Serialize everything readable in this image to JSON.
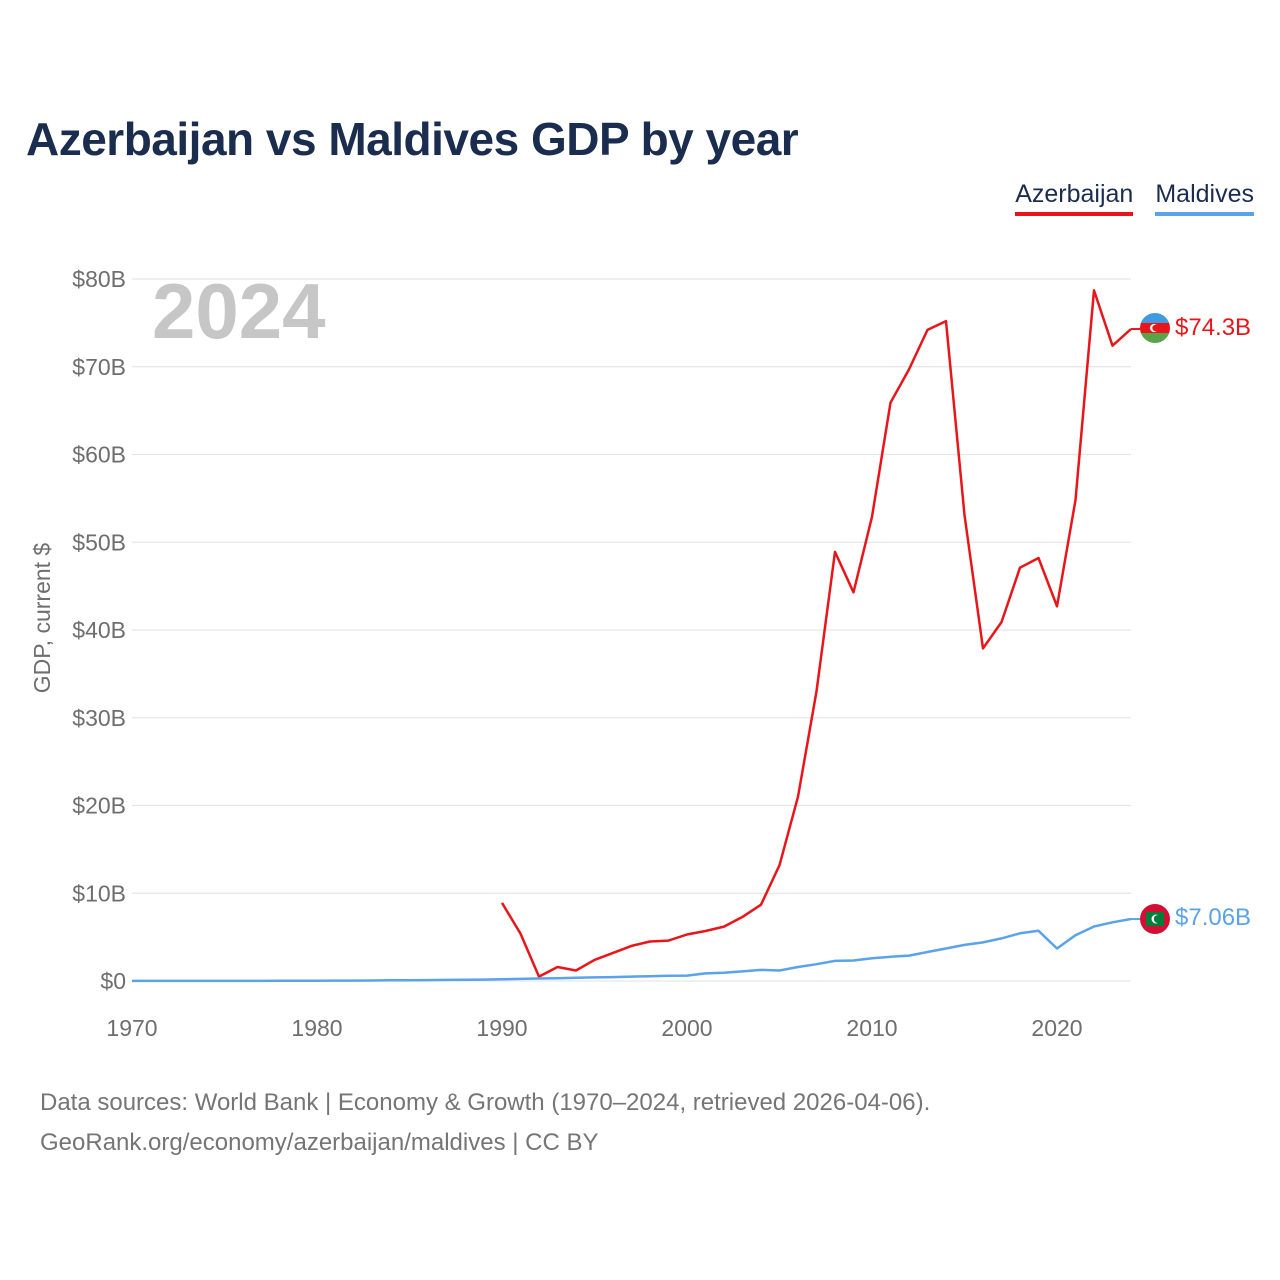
{
  "title": "Azerbaijan vs Maldives GDP by year",
  "legend": [
    {
      "name": "Azerbaijan",
      "color": "#e8161a"
    },
    {
      "name": "Maldives",
      "color": "#5aa3e8"
    }
  ],
  "year_label": "2024",
  "footer": {
    "line1": "Data sources: World Bank | Economy & Growth (1970–2024, retrieved 2026-04-06).",
    "line2": "GeoRank.org/economy/azerbaijan/maldives | CC BY"
  },
  "chart_data": {
    "type": "line",
    "title": "Azerbaijan vs Maldives GDP by year",
    "ylabel": "GDP, current $",
    "xlabel": "",
    "xlim": [
      1970,
      2024
    ],
    "ylim": [
      0,
      80
    ],
    "y_unit": "billion US$",
    "xticks": [
      1970,
      1980,
      1990,
      2000,
      2010,
      2020
    ],
    "xtick_labels": [
      "1970",
      "1980",
      "1990",
      "2000",
      "2010",
      "2020"
    ],
    "yticks": [
      0,
      10,
      20,
      30,
      40,
      50,
      60,
      70,
      80
    ],
    "ytick_labels": [
      "$0",
      "$10B",
      "$20B",
      "$30B",
      "$40B",
      "$50B",
      "$60B",
      "$70B",
      "$80B"
    ],
    "grid": true,
    "legend_position": "top-right",
    "series": [
      {
        "name": "Azerbaijan",
        "color": "#e8161a",
        "end_label": "$74.3B",
        "x": [
          1990,
          1991,
          1992,
          1993,
          1994,
          1995,
          1996,
          1997,
          1998,
          1999,
          2000,
          2001,
          2002,
          2003,
          2004,
          2005,
          2006,
          2007,
          2008,
          2009,
          2010,
          2011,
          2012,
          2013,
          2014,
          2015,
          2016,
          2017,
          2018,
          2019,
          2020,
          2021,
          2022,
          2023,
          2024
        ],
        "values": [
          8.9,
          5.4,
          0.5,
          1.6,
          1.2,
          2.4,
          3.2,
          4.0,
          4.5,
          4.6,
          5.3,
          5.7,
          6.2,
          7.3,
          8.7,
          13.2,
          21.0,
          33.0,
          48.9,
          44.3,
          52.9,
          65.9,
          69.7,
          74.2,
          75.2,
          53.1,
          37.9,
          40.9,
          47.1,
          48.2,
          42.7,
          54.8,
          78.7,
          72.4,
          74.3
        ]
      },
      {
        "name": "Maldives",
        "color": "#5aa3e8",
        "end_label": "$7.06B",
        "x": [
          1970,
          1971,
          1972,
          1973,
          1974,
          1975,
          1976,
          1977,
          1978,
          1979,
          1980,
          1981,
          1982,
          1983,
          1984,
          1985,
          1986,
          1987,
          1988,
          1989,
          1990,
          1991,
          1992,
          1993,
          1994,
          1995,
          1996,
          1997,
          1998,
          1999,
          2000,
          2001,
          2002,
          2003,
          2004,
          2005,
          2006,
          2007,
          2008,
          2009,
          2010,
          2011,
          2012,
          2013,
          2014,
          2015,
          2016,
          2017,
          2018,
          2019,
          2020,
          2021,
          2022,
          2023,
          2024
        ],
        "values": [
          0.01,
          0.01,
          0.01,
          0.01,
          0.01,
          0.01,
          0.01,
          0.01,
          0.02,
          0.02,
          0.03,
          0.04,
          0.05,
          0.06,
          0.08,
          0.09,
          0.1,
          0.12,
          0.14,
          0.16,
          0.2,
          0.24,
          0.28,
          0.32,
          0.36,
          0.41,
          0.45,
          0.5,
          0.54,
          0.59,
          0.62,
          0.87,
          0.93,
          1.09,
          1.27,
          1.2,
          1.59,
          1.92,
          2.29,
          2.34,
          2.59,
          2.76,
          2.89,
          3.3,
          3.7,
          4.11,
          4.4,
          4.85,
          5.44,
          5.72,
          3.7,
          5.22,
          6.21,
          6.69,
          7.06
        ]
      }
    ]
  }
}
